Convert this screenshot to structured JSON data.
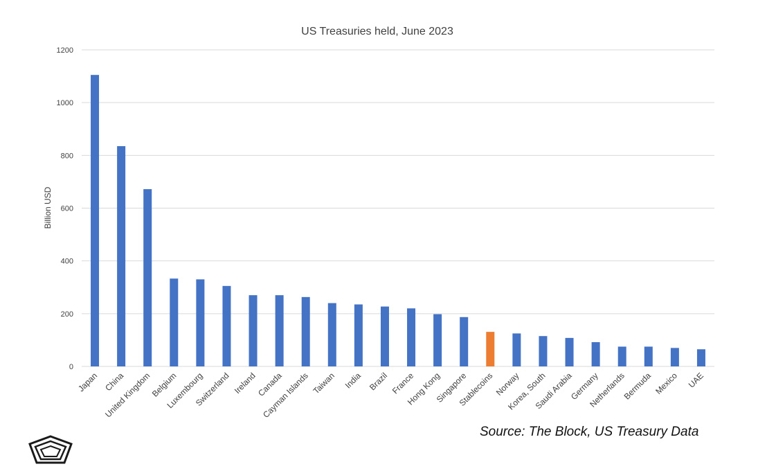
{
  "chart_data": {
    "type": "bar",
    "title": "US Treasuries held, June 2023",
    "xlabel": "",
    "ylabel": "Billion USD",
    "ylim": [
      0,
      1200
    ],
    "yticks": [
      0,
      200,
      400,
      600,
      800,
      1000,
      1200
    ],
    "grid": true,
    "categories": [
      "Japan",
      "China",
      "United Kingdom",
      "Belgium",
      "Luxembourg",
      "Switzerland",
      "Ireland",
      "Canada",
      "Cayman Islands",
      "Taiwan",
      "India",
      "Brazil",
      "France",
      "Hong Kong",
      "Singapore",
      "Stablecoins",
      "Norway",
      "Korea, South",
      "Saudi Arabia",
      "Germany",
      "Netherlands",
      "Bermuda",
      "Mexico",
      "UAE"
    ],
    "values": [
      1105,
      835,
      672,
      333,
      330,
      305,
      270,
      270,
      263,
      240,
      235,
      227,
      220,
      198,
      187,
      131,
      125,
      115,
      108,
      92,
      75,
      75,
      70,
      65
    ],
    "highlight": "Stablecoins",
    "colors": {
      "bar": "#4472c4",
      "highlight": "#ed7d31",
      "grid": "#d9d9d9",
      "text": "#404040"
    }
  },
  "source": "Source: The Block, US Treasury Data",
  "logo_icon": "pentagon-logo-icon"
}
